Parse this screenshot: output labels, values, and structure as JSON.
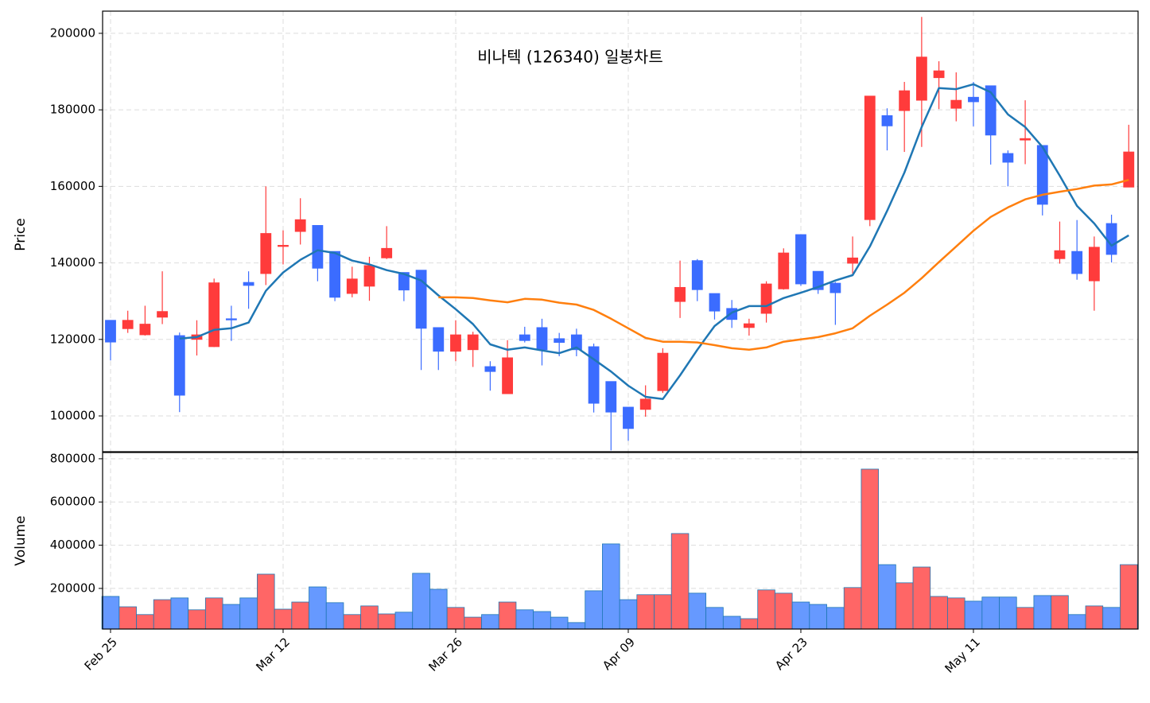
{
  "chart_data": {
    "type": "candlestick",
    "title": "비나텍 (126340) 일봉차트",
    "y_label": "Price",
    "volume_label": "Volume",
    "categories": [
      "Feb 25",
      null,
      null,
      null,
      null,
      null,
      null,
      null,
      null,
      null,
      "Mar 12",
      null,
      null,
      null,
      null,
      null,
      null,
      null,
      null,
      null,
      "Mar 26",
      null,
      null,
      null,
      null,
      null,
      null,
      null,
      null,
      null,
      "Apr 09",
      null,
      null,
      null,
      null,
      null,
      null,
      null,
      null,
      null,
      "Apr 23",
      null,
      null,
      null,
      null,
      null,
      null,
      null,
      null,
      null,
      "May 11",
      null,
      null,
      null,
      null,
      null,
      null,
      null,
      null,
      null
    ],
    "open": [
      125000,
      122800,
      121200,
      125800,
      121000,
      120000,
      118100,
      125400,
      134900,
      137200,
      144400,
      148200,
      149800,
      143000,
      132000,
      133900,
      141300,
      137500,
      138100,
      123100,
      116900,
      117300,
      112900,
      105800,
      121200,
      123100,
      120200,
      121200,
      118100,
      109000,
      102300,
      101700,
      106600,
      129900,
      140600,
      132000,
      128100,
      123100,
      126800,
      133200,
      147400,
      137800,
      134700,
      139900,
      151300,
      178500,
      179800,
      182500,
      188400,
      180400,
      183300,
      186300,
      168600,
      172100,
      170700,
      141100,
      143000,
      135300,
      150300,
      159800
    ],
    "high": [
      125000,
      127500,
      128800,
      137800,
      121800,
      125000,
      135900,
      128800,
      137800,
      160000,
      148500,
      156900,
      149800,
      143000,
      139000,
      141600,
      149600,
      137500,
      138100,
      123100,
      125000,
      122000,
      114300,
      119800,
      123300,
      125400,
      121700,
      122800,
      118900,
      109000,
      102300,
      108000,
      117700,
      140600,
      141000,
      132000,
      130300,
      125400,
      135200,
      143800,
      147400,
      137800,
      135000,
      146900,
      183600,
      180400,
      187300,
      204300,
      192700,
      189800,
      187300,
      186300,
      169400,
      182500,
      170700,
      150800,
      151200,
      146900,
      152600,
      176100
    ],
    "low": [
      114500,
      121700,
      121000,
      124000,
      101000,
      115800,
      118000,
      119600,
      128000,
      134200,
      139600,
      144800,
      135200,
      130000,
      131000,
      130100,
      141000,
      130000,
      112000,
      112000,
      114300,
      112800,
      106600,
      105800,
      119200,
      113200,
      115600,
      115600,
      100900,
      91000,
      93500,
      99800,
      106000,
      125600,
      130000,
      125200,
      123000,
      121000,
      124400,
      133000,
      134000,
      131900,
      123800,
      137000,
      149600,
      169400,
      169000,
      170300,
      180200,
      177000,
      175700,
      165700,
      160000,
      165800,
      152400,
      139800,
      135600,
      127500,
      140100,
      159800
    ],
    "close": [
      119300,
      125000,
      124000,
      127300,
      105400,
      121200,
      134800,
      125200,
      134100,
      147700,
      144600,
      151300,
      138600,
      131000,
      135800,
      139300,
      143800,
      132900,
      122900,
      116900,
      121200,
      121200,
      111600,
      115200,
      119700,
      117300,
      119200,
      117300,
      103300,
      101000,
      96700,
      104400,
      116400,
      133600,
      133000,
      127400,
      125200,
      124100,
      134500,
      142600,
      134500,
      133000,
      132200,
      141300,
      183600,
      175800,
      185000,
      193800,
      190200,
      182500,
      182100,
      173400,
      166300,
      172500,
      155300,
      143200,
      137200,
      144100,
      142200,
      169000
    ],
    "volume": [
      163000,
      115000,
      79000,
      148000,
      156000,
      101000,
      156000,
      126000,
      156000,
      266000,
      104000,
      137000,
      207000,
      134000,
      79000,
      119000,
      82000,
      90000,
      270000,
      196000,
      112000,
      67000,
      79000,
      137000,
      101000,
      93000,
      67000,
      42000,
      189000,
      406000,
      148000,
      171000,
      171000,
      454000,
      178000,
      112000,
      71000,
      60000,
      193000,
      178000,
      137000,
      126000,
      112000,
      204000,
      752000,
      310000,
      226000,
      299000,
      163000,
      156000,
      141000,
      160000,
      160000,
      112000,
      167000,
      167000,
      79000,
      119000,
      112000,
      310000
    ],
    "up_color": "#ff3b3b",
    "down_color": "#3b6cff",
    "volume_up_color": "#ff6666",
    "volume_down_color": "#6699ff",
    "volume_edge_color": "#1f77b4",
    "moving_averages": [
      {
        "color": "#1f77b4",
        "values": [
          null,
          null,
          null,
          null,
          120200,
          120600,
          122500,
          122900,
          124400,
          132700,
          137500,
          140800,
          143300,
          142600,
          140600,
          139600,
          138100,
          137100,
          135400,
          131500,
          127900,
          124000,
          118700,
          117300,
          117900,
          117100,
          116400,
          117900,
          114800,
          111600,
          107900,
          105000,
          104400,
          110600,
          117300,
          123500,
          127000,
          128700,
          128700,
          130800,
          132200,
          133700,
          135400,
          136800,
          144300,
          153600,
          163600,
          175500,
          185700,
          185400,
          186700,
          184600,
          178800,
          175500,
          170300,
          162800,
          154900,
          150300,
          144500,
          147200
        ]
      },
      {
        "color": "#ff7f0e",
        "values": [
          null,
          null,
          null,
          null,
          null,
          null,
          null,
          null,
          null,
          null,
          null,
          null,
          null,
          null,
          null,
          null,
          null,
          null,
          null,
          131000,
          131000,
          130800,
          130200,
          129700,
          130600,
          130400,
          129600,
          129100,
          127700,
          125400,
          122900,
          120400,
          119400,
          119400,
          119200,
          118500,
          117700,
          117300,
          117900,
          119400,
          120000,
          120600,
          121600,
          122900,
          126200,
          129100,
          132200,
          136000,
          140200,
          144300,
          148400,
          152000,
          154500,
          156600,
          157800,
          158600,
          159300,
          160200,
          160500,
          161700
        ]
      }
    ],
    "xlim": [
      -0.46,
      59.54
    ],
    "ylim": [
      90650,
      205800
    ],
    "yticks": [
      100000,
      120000,
      140000,
      160000,
      180000,
      200000
    ],
    "volume_ylim": [
      12000,
      829000
    ],
    "volume_yticks": [
      200000,
      400000,
      600000,
      800000
    ],
    "grid": true
  }
}
